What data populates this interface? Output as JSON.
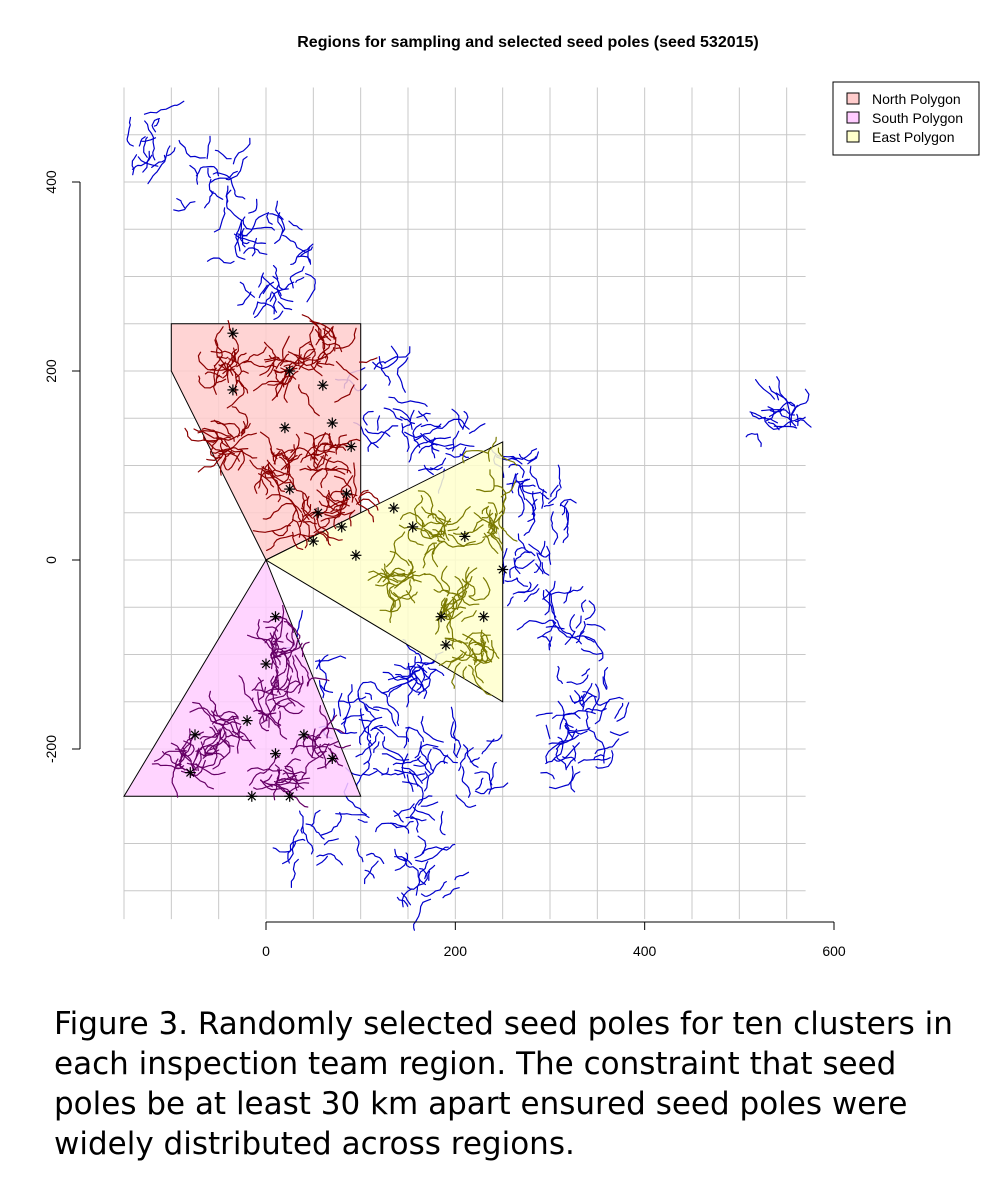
{
  "caption": "Figure 3.  Randomly selected seed poles for ten clusters in each inspection team region.  The constraint that seed poles be at least 30 km apart ensured seed poles were widely distributed across regions.",
  "chart_data": {
    "type": "scatter",
    "title": "Regions for sampling and selected seed poles (seed 532015)",
    "xlabel": "",
    "ylabel": "",
    "xlim": [
      -150,
      600
    ],
    "ylim": [
      -380,
      480
    ],
    "x_ticks": [
      0,
      200,
      400,
      600
    ],
    "y_ticks": [
      -200,
      0,
      200,
      400
    ],
    "grid": true,
    "legend_position": "top-right",
    "colors": {
      "north": "#ffcccc",
      "south": "#ffccff",
      "east": "#ffffcc",
      "poles_outside": "#0000cc",
      "poles_north": "#8b0000",
      "poles_south": "#660066",
      "poles_east": "#7a7a00",
      "seed": "#000000"
    },
    "legend": [
      {
        "name": "North Polygon",
        "color": "#ffcccc"
      },
      {
        "name": "South Polygon",
        "color": "#ffccff"
      },
      {
        "name": "East Polygon",
        "color": "#ffffcc"
      }
    ],
    "polygons": [
      {
        "name": "North Polygon",
        "points": [
          [
            0,
            0
          ],
          [
            -100,
            200
          ],
          [
            -100,
            250
          ],
          [
            100,
            250
          ],
          [
            100,
            50
          ]
        ]
      },
      {
        "name": "South Polygon",
        "points": [
          [
            0,
            0
          ],
          [
            -150,
            -250
          ],
          [
            100,
            -250
          ]
        ]
      },
      {
        "name": "East Polygon",
        "points": [
          [
            0,
            0
          ],
          [
            250,
            125
          ],
          [
            250,
            -150
          ]
        ]
      }
    ],
    "seed_poles": {
      "North Polygon": [
        [
          -35,
          240
        ],
        [
          -35,
          180
        ],
        [
          25,
          200
        ],
        [
          60,
          185
        ],
        [
          70,
          145
        ],
        [
          20,
          140
        ],
        [
          90,
          120
        ],
        [
          25,
          75
        ],
        [
          55,
          50
        ],
        [
          85,
          70
        ]
      ],
      "South Polygon": [
        [
          10,
          -60
        ],
        [
          0,
          -110
        ],
        [
          -20,
          -170
        ],
        [
          -75,
          -185
        ],
        [
          -80,
          -225
        ],
        [
          40,
          -185
        ],
        [
          10,
          -205
        ],
        [
          70,
          -210
        ],
        [
          25,
          -250
        ],
        [
          -15,
          -250
        ]
      ],
      "East Polygon": [
        [
          135,
          55
        ],
        [
          155,
          35
        ],
        [
          210,
          25
        ],
        [
          80,
          35
        ],
        [
          95,
          5
        ],
        [
          50,
          20
        ],
        [
          250,
          -10
        ],
        [
          185,
          -60
        ],
        [
          230,
          -60
        ],
        [
          190,
          -90
        ]
      ]
    }
  }
}
